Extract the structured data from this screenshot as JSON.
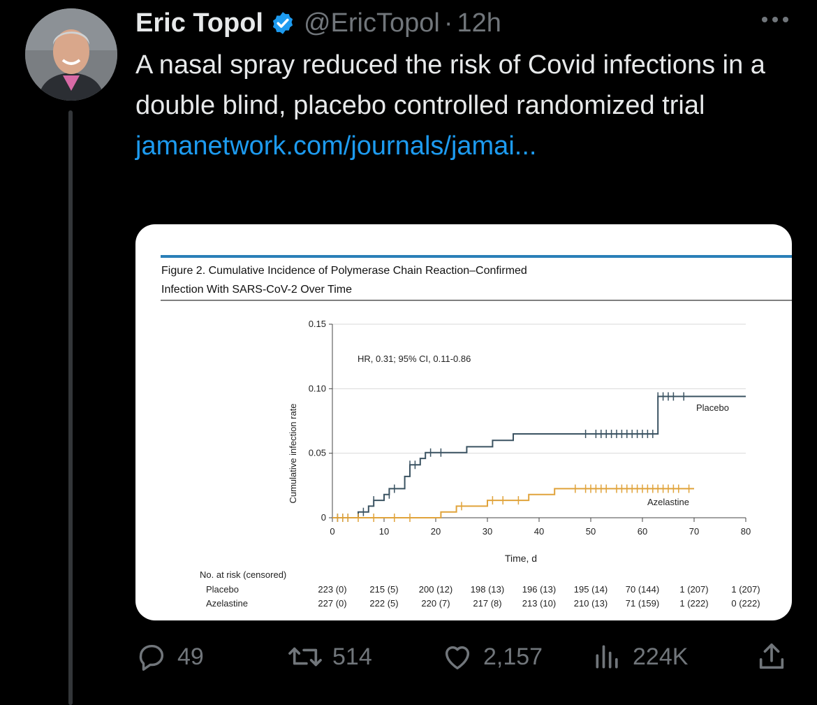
{
  "tweet": {
    "author_name": "Eric Topol",
    "handle": "@EricTopol",
    "separator": "·",
    "time": "12h",
    "text": "A nasal spray reduced the risk of Covid infections in a double blind, placebo controlled randomized trial",
    "link": "jamanetwork.com/journals/jamai..."
  },
  "icons": {
    "verified": "verified-badge-icon",
    "more": "more-icon",
    "reply": "reply-icon",
    "retweet": "retweet-icon",
    "like": "like-icon",
    "views": "views-icon",
    "share": "share-icon"
  },
  "colors": {
    "accent": "#1d9bf0",
    "muted": "#71767b",
    "placebo": "#3b5362",
    "azelastine": "#e0a33b",
    "figure_rule": "#2a7fb8"
  },
  "actions": {
    "replies": "49",
    "retweets": "514",
    "likes": "2,157",
    "views": "224K"
  },
  "chart_data": {
    "type": "line",
    "title": "Figure 2. Cumulative Incidence of Polymerase Chain Reaction–Confirmed Infection With SARS-CoV-2 Over Time",
    "title_lines": [
      "Figure 2. Cumulative Incidence of Polymerase Chain Reaction–Confirmed",
      "Infection With SARS-CoV-2 Over Time"
    ],
    "xlabel": "Time, d",
    "ylabel": "Cumulative infection rate",
    "xlim": [
      0,
      80
    ],
    "ylim": [
      0,
      0.15
    ],
    "x_ticks": [
      0,
      10,
      20,
      30,
      40,
      50,
      60,
      70,
      80
    ],
    "y_ticks": [
      0,
      0.05,
      0.1,
      0.15
    ],
    "y_tick_labels": [
      "0",
      "0.05",
      "0.10",
      "0.15"
    ],
    "grid": "horizontal",
    "annotation": "HR, 0.31; 95% CI, 0.11-0.86",
    "series": [
      {
        "name": "Placebo",
        "step_points": [
          [
            0,
            0
          ],
          [
            5,
            0
          ],
          [
            5,
            0.0045
          ],
          [
            7,
            0.0045
          ],
          [
            7,
            0.009
          ],
          [
            8,
            0.009
          ],
          [
            8,
            0.0135
          ],
          [
            10,
            0.0135
          ],
          [
            10,
            0.018
          ],
          [
            11,
            0.018
          ],
          [
            11,
            0.0225
          ],
          [
            14,
            0.0225
          ],
          [
            14,
            0.032
          ],
          [
            15,
            0.032
          ],
          [
            15,
            0.041
          ],
          [
            17,
            0.041
          ],
          [
            17,
            0.046
          ],
          [
            18,
            0.046
          ],
          [
            18,
            0.0505
          ],
          [
            26,
            0.0505
          ],
          [
            26,
            0.055
          ],
          [
            31,
            0.055
          ],
          [
            31,
            0.06
          ],
          [
            35,
            0.06
          ],
          [
            35,
            0.065
          ],
          [
            63,
            0.065
          ],
          [
            63,
            0.094
          ],
          [
            80,
            0.094
          ]
        ],
        "censor_marks": [
          [
            1,
            0
          ],
          [
            2,
            0
          ],
          [
            3,
            0
          ],
          [
            6,
            0.0045
          ],
          [
            8,
            0.0135
          ],
          [
            11,
            0.018
          ],
          [
            12,
            0.0225
          ],
          [
            15,
            0.041
          ],
          [
            16,
            0.041
          ],
          [
            19,
            0.0505
          ],
          [
            21,
            0.0505
          ],
          [
            49,
            0.065
          ],
          [
            51,
            0.065
          ],
          [
            52,
            0.065
          ],
          [
            53,
            0.065
          ],
          [
            54,
            0.065
          ],
          [
            55,
            0.065
          ],
          [
            56,
            0.065
          ],
          [
            57,
            0.065
          ],
          [
            58,
            0.065
          ],
          [
            59,
            0.065
          ],
          [
            60,
            0.065
          ],
          [
            61,
            0.065
          ],
          [
            62,
            0.065
          ],
          [
            63,
            0.094
          ],
          [
            64,
            0.094
          ],
          [
            65,
            0.094
          ],
          [
            66,
            0.094
          ],
          [
            68,
            0.094
          ]
        ]
      },
      {
        "name": "Azelastine",
        "step_points": [
          [
            0,
            0
          ],
          [
            21,
            0
          ],
          [
            21,
            0.0045
          ],
          [
            24,
            0.0045
          ],
          [
            24,
            0.009
          ],
          [
            30,
            0.009
          ],
          [
            30,
            0.0135
          ],
          [
            38,
            0.0135
          ],
          [
            38,
            0.018
          ],
          [
            43,
            0.018
          ],
          [
            43,
            0.0225
          ],
          [
            70,
            0.0225
          ]
        ],
        "censor_marks": [
          [
            1,
            0
          ],
          [
            2,
            0
          ],
          [
            3,
            0
          ],
          [
            5,
            0
          ],
          [
            8,
            0
          ],
          [
            12,
            0
          ],
          [
            15,
            0
          ],
          [
            25,
            0.009
          ],
          [
            31,
            0.0135
          ],
          [
            33,
            0.0135
          ],
          [
            36,
            0.0135
          ],
          [
            47,
            0.0225
          ],
          [
            49,
            0.0225
          ],
          [
            50,
            0.0225
          ],
          [
            51,
            0.0225
          ],
          [
            52,
            0.0225
          ],
          [
            53,
            0.0225
          ],
          [
            55,
            0.0225
          ],
          [
            56,
            0.0225
          ],
          [
            57,
            0.0225
          ],
          [
            58,
            0.0225
          ],
          [
            59,
            0.0225
          ],
          [
            60,
            0.0225
          ],
          [
            61,
            0.0225
          ],
          [
            62,
            0.0225
          ],
          [
            63,
            0.0225
          ],
          [
            64,
            0.0225
          ],
          [
            65,
            0.0225
          ],
          [
            66,
            0.0225
          ],
          [
            67,
            0.0225
          ],
          [
            69,
            0.0225
          ]
        ]
      }
    ],
    "risk_table": {
      "title": "No. at risk (censored)",
      "rows": [
        {
          "label": "Placebo",
          "values": [
            "223 (0)",
            "215 (5)",
            "200 (12)",
            "198 (13)",
            "196 (13)",
            "195 (14)",
            "70 (144)",
            "1 (207)",
            "1 (207)"
          ]
        },
        {
          "label": "Azelastine",
          "values": [
            "227 (0)",
            "222 (5)",
            "220 (7)",
            "217 (8)",
            "213 (10)",
            "210 (13)",
            "71 (159)",
            "1 (222)",
            "0 (222)"
          ]
        }
      ]
    }
  }
}
